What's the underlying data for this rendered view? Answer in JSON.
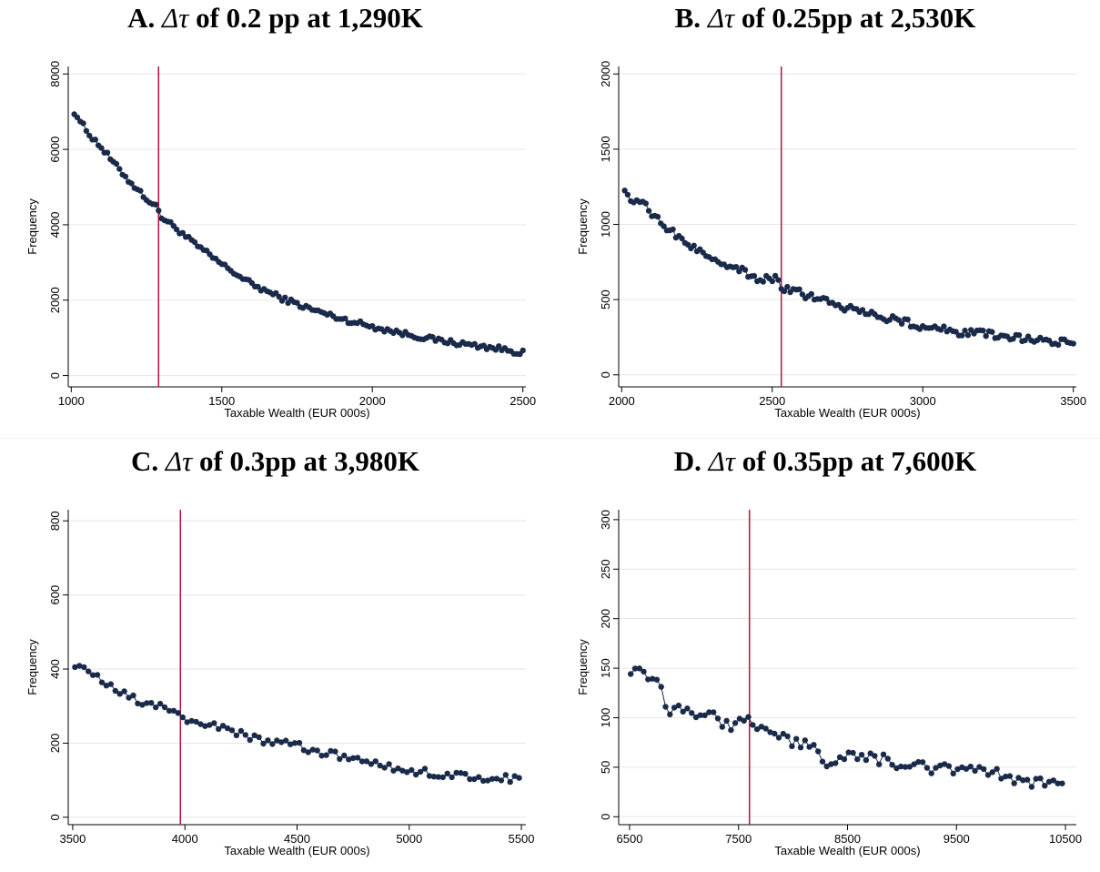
{
  "chart_data": [
    {
      "type": "line",
      "title": "A. Δτ of 0.2 pp at 1,290K",
      "title_parts": {
        "prefix": "A. ",
        "symbol": "Δτ",
        "suffix": " of 0.2 pp at 1,290K"
      },
      "xlabel": "Taxable Wealth (EUR 000s)",
      "ylabel": "Frequency",
      "xlim": [
        990,
        2510
      ],
      "ylim": [
        -300,
        8200
      ],
      "xticks": [
        "1000",
        "1500",
        "2000",
        "2500"
      ],
      "yticks": [
        "0",
        "2000",
        "4000",
        "6000",
        "8000"
      ],
      "grid": true,
      "threshold": 1290,
      "colors": {
        "series": "#1a2a4a",
        "threshold": "#b8123c",
        "grid": "#e6e6e6"
      },
      "series": [
        {
          "x0": 1010,
          "step": 10,
          "n": 150,
          "anchors": [
            [
              1010,
              7000
            ],
            [
              1050,
              6500
            ],
            [
              1100,
              6050
            ],
            [
              1150,
              5550
            ],
            [
              1200,
              5100
            ],
            [
              1250,
              4700
            ],
            [
              1290,
              4400
            ],
            [
              1300,
              4200
            ],
            [
              1350,
              3900
            ],
            [
              1400,
              3550
            ],
            [
              1450,
              3250
            ],
            [
              1500,
              2950
            ],
            [
              1600,
              2420
            ],
            [
              1700,
              2050
            ],
            [
              1800,
              1750
            ],
            [
              1900,
              1500
            ],
            [
              2000,
              1300
            ],
            [
              2100,
              1120
            ],
            [
              2200,
              960
            ],
            [
              2300,
              840
            ],
            [
              2400,
              740
            ],
            [
              2490,
              620
            ]
          ],
          "jitter": 70
        }
      ]
    },
    {
      "type": "line",
      "title": "B. Δτ of 0.25pp at 2,530K",
      "title_parts": {
        "prefix": "B. ",
        "symbol": "Δτ",
        "suffix": " of 0.25pp at 2,530K"
      },
      "xlabel": "Taxable Wealth (EUR 000s)",
      "ylabel": "Frequency",
      "xlim": [
        1990,
        3510
      ],
      "ylim": [
        -80,
        2050
      ],
      "xticks": [
        "2000",
        "2500",
        "3000",
        "3500"
      ],
      "yticks": [
        "0",
        "500",
        "1000",
        "1500",
        "2000"
      ],
      "grid": true,
      "threshold": 2530,
      "colors": {
        "series": "#1a2a4a",
        "threshold": "#b8123c",
        "grid": "#e6e6e6"
      },
      "series": [
        {
          "x0": 2010,
          "step": 10,
          "n": 150,
          "anchors": [
            [
              2010,
              1250
            ],
            [
              2030,
              1150
            ],
            [
              2060,
              1170
            ],
            [
              2100,
              1060
            ],
            [
              2150,
              980
            ],
            [
              2200,
              900
            ],
            [
              2250,
              830
            ],
            [
              2300,
              780
            ],
            [
              2350,
              740
            ],
            [
              2400,
              690
            ],
            [
              2450,
              640
            ],
            [
              2520,
              640
            ],
            [
              2530,
              560
            ],
            [
              2560,
              560
            ],
            [
              2600,
              540
            ],
            [
              2700,
              470
            ],
            [
              2800,
              420
            ],
            [
              2900,
              370
            ],
            [
              3000,
              320
            ],
            [
              3100,
              290
            ],
            [
              3200,
              270
            ],
            [
              3300,
              250
            ],
            [
              3400,
              230
            ],
            [
              3490,
              210
            ]
          ],
          "jitter": 25
        }
      ]
    },
    {
      "type": "line",
      "title": "C. Δτ of 0.3pp at 3,980K",
      "title_parts": {
        "prefix": "C. ",
        "symbol": "Δτ",
        "suffix": " of 0.3pp at 3,980K"
      },
      "xlabel": "Taxable Wealth (EUR 000s)",
      "ylabel": "Frequency",
      "xlim": [
        3480,
        5520
      ],
      "ylim": [
        -20,
        830
      ],
      "xticks": [
        "3500",
        "4000",
        "4500",
        "5000",
        "5500"
      ],
      "yticks": [
        "0",
        "200",
        "400",
        "600",
        "800"
      ],
      "grid": true,
      "threshold": 3980,
      "colors": {
        "series": "#1a2a4a",
        "threshold": "#b8123c",
        "grid": "#e6e6e6"
      },
      "series": [
        {
          "x0": 3510,
          "step": 20,
          "n": 100,
          "anchors": [
            [
              3510,
              415
            ],
            [
              3600,
              380
            ],
            [
              3700,
              340
            ],
            [
              3800,
              310
            ],
            [
              3900,
              300
            ],
            [
              3980,
              280
            ],
            [
              4000,
              260
            ],
            [
              4100,
              250
            ],
            [
              4200,
              235
            ],
            [
              4300,
              215
            ],
            [
              4400,
              200
            ],
            [
              4500,
              195
            ],
            [
              4600,
              175
            ],
            [
              4700,
              165
            ],
            [
              4800,
              150
            ],
            [
              4900,
              135
            ],
            [
              5000,
              125
            ],
            [
              5100,
              120
            ],
            [
              5200,
              115
            ],
            [
              5300,
              105
            ],
            [
              5490,
              105
            ]
          ],
          "jitter": 10
        }
      ]
    },
    {
      "type": "line",
      "title": "D. Δτ of 0.35pp at 7,600K",
      "title_parts": {
        "prefix": "D. ",
        "symbol": "Δτ",
        "suffix": " of 0.35pp at 7,600K"
      },
      "xlabel": "Taxable Wealth (EUR 000s)",
      "ylabel": "Frequency",
      "xlim": [
        6400,
        10600
      ],
      "ylim": [
        -8,
        310
      ],
      "xticks": [
        "6500",
        "7500",
        "8500",
        "9500",
        "10500"
      ],
      "yticks": [
        "0",
        "50",
        "100",
        "150",
        "200",
        "250",
        "300"
      ],
      "grid": true,
      "threshold": 7600,
      "colors": {
        "series": "#1a2a4a",
        "threshold": "#b8123c",
        "grid": "#e6e6e6"
      },
      "series": [
        {
          "x0": 6510,
          "step": 40,
          "n": 100,
          "anchors": [
            [
              6510,
              150
            ],
            [
              6650,
              140
            ],
            [
              6800,
              130
            ],
            [
              6850,
              105
            ],
            [
              7000,
              108
            ],
            [
              7200,
              105
            ],
            [
              7400,
              92
            ],
            [
              7600,
              95
            ],
            [
              7800,
              85
            ],
            [
              8000,
              75
            ],
            [
              8200,
              70
            ],
            [
              8300,
              50
            ],
            [
              8400,
              60
            ],
            [
              8600,
              60
            ],
            [
              8800,
              58
            ],
            [
              9000,
              52
            ],
            [
              9200,
              50
            ],
            [
              9400,
              48
            ],
            [
              9600,
              50
            ],
            [
              9800,
              45
            ],
            [
              10000,
              38
            ],
            [
              10200,
              33
            ],
            [
              10450,
              33
            ]
          ],
          "jitter": 6
        }
      ]
    }
  ]
}
